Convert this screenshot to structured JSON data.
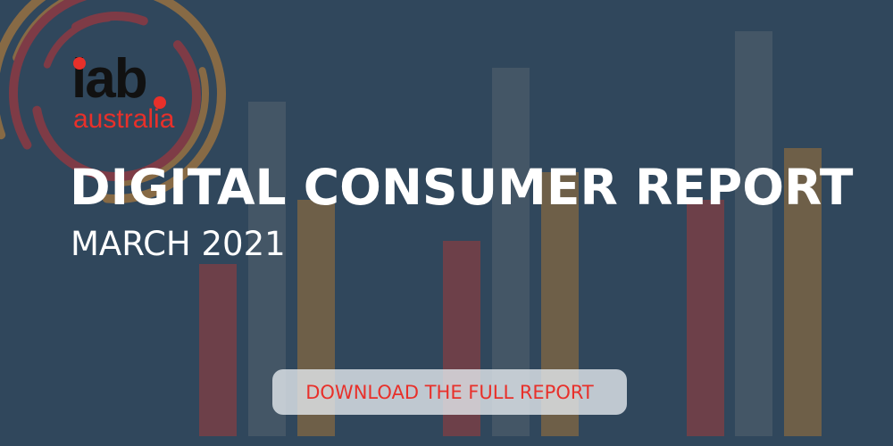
{
  "logo": {
    "name": "iab",
    "sub": "australia"
  },
  "title": "DIGITAL CONSUMER REPORT",
  "subtitle": "MARCH 2021",
  "cta_label": "DOWNLOAD THE FULL REPORT",
  "colors": {
    "background": "#30475c",
    "red": "#6d4049",
    "grey": "#445666",
    "gold": "#6e5f48",
    "accent": "#e8302a",
    "arc_red": "#7e3b46",
    "arc_gold": "#876a45"
  }
}
